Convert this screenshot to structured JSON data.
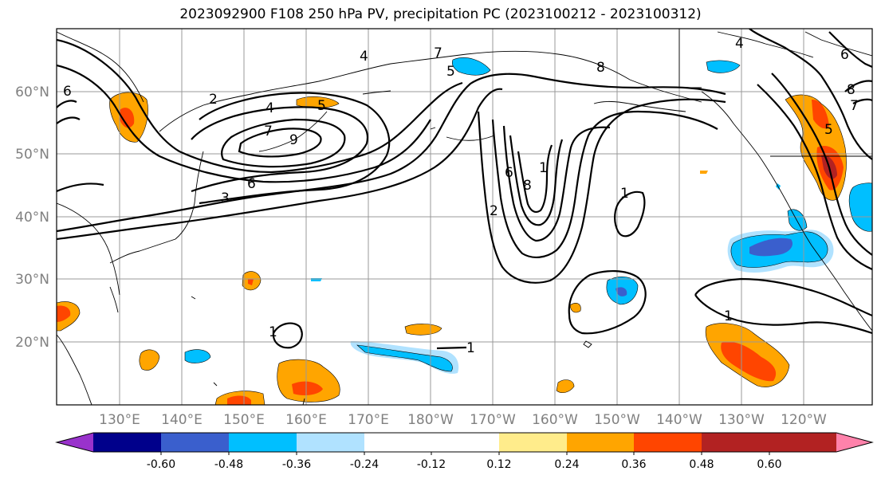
{
  "title": "2023092900 F108 250 hPa PV, precipitation PC (2023100212 - 2023100312)",
  "lat_labels": [
    "60°N",
    "50°N",
    "40°N",
    "30°N",
    "20°N"
  ],
  "lon_labels": [
    "130°E",
    "140°E",
    "150°E",
    "160°E",
    "170°E",
    "180°W",
    "170°W",
    "160°W",
    "150°W",
    "140°W",
    "130°W",
    "120°W"
  ],
  "colorbar": {
    "colors": [
      "#9932cc",
      "#00008b",
      "#3a5fcd",
      "#00bfff",
      "#b0e2ff",
      "#ffffff",
      "#ffec8b",
      "#ffa500",
      "#ff4500",
      "#b22222",
      "#ff82ab"
    ],
    "tick_labels": [
      "-0.60",
      "-0.48",
      "-0.36",
      "-0.24",
      "-0.12",
      "0.12",
      "0.24",
      "0.36",
      "0.48",
      "0.60"
    ]
  },
  "contour_labels": [
    "2",
    "4",
    "5",
    "6",
    "7",
    "8",
    "9",
    "3",
    "1",
    "5",
    "7",
    "8",
    "4",
    "6",
    "1",
    "1",
    "1",
    "1",
    "2",
    "6",
    "8",
    "4",
    "5",
    "6",
    "7"
  ]
}
